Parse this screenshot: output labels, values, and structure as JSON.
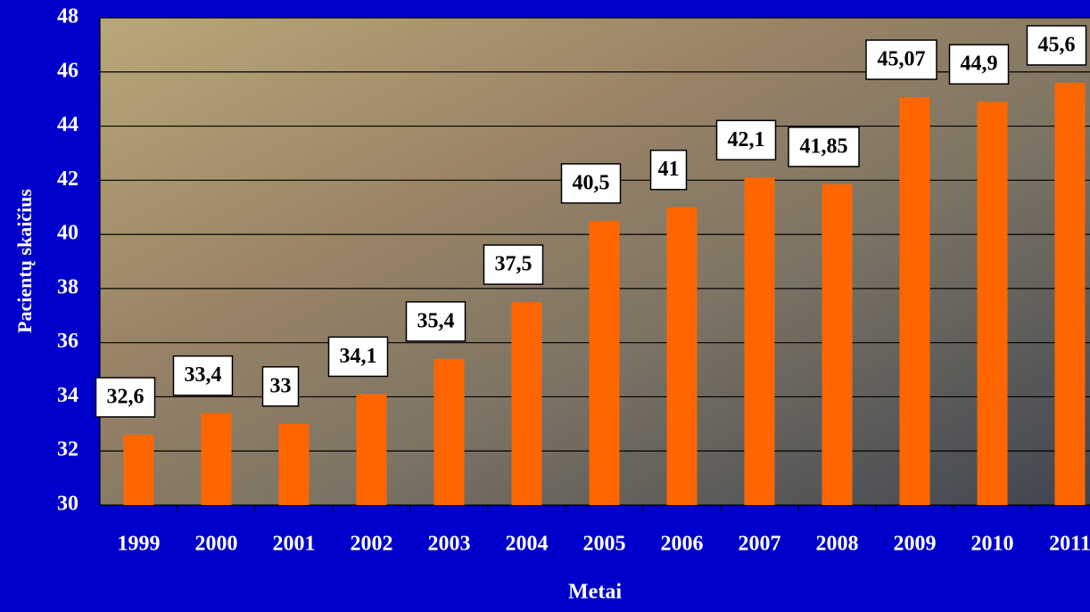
{
  "chart_data": {
    "type": "bar",
    "x_label": "Metai",
    "y_label": "Pacientų skaičius",
    "categories": [
      "1999",
      "2000",
      "2001",
      "2002",
      "2003",
      "2004",
      "2005",
      "2006",
      "2007",
      "2008",
      "2009",
      "2010",
      "2011"
    ],
    "values": [
      32.6,
      33.4,
      33,
      34.1,
      35.4,
      37.5,
      40.5,
      41,
      42.1,
      41.85,
      45.07,
      44.9,
      45.6
    ],
    "value_labels": [
      "32,6",
      "33,4",
      "33",
      "34,1",
      "35,4",
      "37,5",
      "40,5",
      "41",
      "42,1",
      "41,85",
      "45,07",
      "44,9",
      "45,6"
    ],
    "color": "#ff6600",
    "ylim": [
      30,
      48
    ],
    "yticks": [
      30,
      32,
      34,
      36,
      38,
      40,
      42,
      44,
      46,
      48
    ],
    "grid": true
  }
}
